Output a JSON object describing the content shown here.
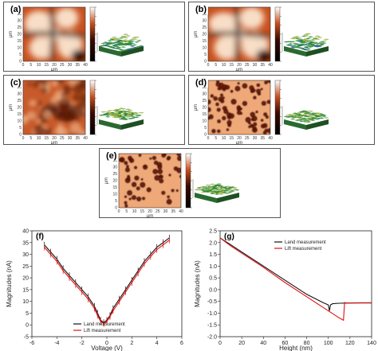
{
  "figure": {
    "panels": [
      {
        "id": "a",
        "label": "(a)",
        "variant": "big_grains"
      },
      {
        "id": "b",
        "label": "(b)",
        "variant": "big_grains"
      },
      {
        "id": "c",
        "label": "(c)",
        "variant": "mottled"
      },
      {
        "id": "d",
        "label": "(d)",
        "variant": "dots_dense"
      },
      {
        "id": "e",
        "label": "(e)",
        "variant": "dots_sparse"
      }
    ],
    "afm_axis": {
      "ticks": [
        "0",
        "5",
        "10",
        "15",
        "20",
        "25",
        "30",
        "35",
        "40"
      ],
      "unit": "μm"
    },
    "colors": {
      "afm_dark": "#3a0a00",
      "afm_mid": "#c8501e",
      "afm_light": "#fbe6d0",
      "surface_green": "#3aa84a",
      "surface_yellow": "#d8e040",
      "surface_blue": "#2a6ad8"
    }
  },
  "chart_data": [
    {
      "id": "f",
      "label": "(f)",
      "type": "line",
      "xlabel": "Voltage (V)",
      "ylabel": "Magnitudes (nA)",
      "xlim": [
        -6,
        6
      ],
      "ylim": [
        -5,
        40
      ],
      "xticks": [
        -6,
        -4,
        -2,
        0,
        2,
        4,
        6
      ],
      "yticks": [
        -5,
        0,
        5,
        10,
        15,
        20,
        25,
        30,
        35,
        40
      ],
      "legend_position": "bottom-right",
      "series": [
        {
          "name": "Land measurement",
          "color": "#111111",
          "x": [
            -5,
            -4.5,
            -4,
            -3.5,
            -3,
            -2.5,
            -2,
            -1.5,
            -1,
            -0.75,
            -0.5,
            -0.25,
            0,
            0.25,
            0.5,
            1,
            1.5,
            2,
            2.5,
            3,
            3.5,
            4,
            4.5,
            5
          ],
          "y": [
            34,
            31,
            28,
            24,
            21,
            18,
            15,
            12,
            8,
            5,
            2,
            1,
            2,
            4,
            7,
            11,
            15,
            19,
            23,
            27,
            30,
            33,
            35,
            37
          ]
        },
        {
          "name": "Lift measurement",
          "color": "#e01010",
          "x": [
            -5,
            -4.5,
            -4,
            -3.5,
            -3,
            -2.5,
            -2,
            -1.5,
            -1,
            -0.75,
            -0.5,
            -0.25,
            0,
            0.25,
            0.5,
            1,
            1.5,
            2,
            2.5,
            3,
            3.5,
            4,
            4.5,
            5
          ],
          "y": [
            33,
            30,
            27,
            23,
            20,
            17,
            14,
            11,
            7,
            4,
            1.5,
            0.5,
            1.5,
            3.5,
            6,
            10,
            14,
            18,
            22,
            26,
            29,
            32,
            34,
            36
          ]
        }
      ]
    },
    {
      "id": "g",
      "label": "(g)",
      "type": "line",
      "xlabel": "Height (nm)",
      "ylabel": "Magnitudes (nA)",
      "xlim": [
        0,
        140
      ],
      "ylim": [
        -2.0,
        2.5
      ],
      "xticks": [
        0,
        20,
        40,
        60,
        80,
        100,
        120,
        140
      ],
      "yticks": [
        -2.0,
        -1.5,
        -1.0,
        -0.5,
        0.0,
        0.5,
        1.0,
        1.5,
        2.0,
        2.5
      ],
      "legend_position": "top-right",
      "series": [
        {
          "name": "Land measurement",
          "color": "#111111",
          "x": [
            0,
            10,
            20,
            40,
            60,
            80,
            95,
            100,
            101,
            102,
            104,
            110,
            120,
            130,
            140
          ],
          "y": [
            2.2,
            1.9,
            1.6,
            1.0,
            0.4,
            -0.2,
            -0.55,
            -0.65,
            -0.9,
            -0.65,
            -0.6,
            -0.58,
            -0.57,
            -0.56,
            -0.56
          ]
        },
        {
          "name": "Lift measurement",
          "color": "#e01010",
          "x": [
            0,
            10,
            20,
            40,
            60,
            80,
            95,
            105,
            110,
            114,
            115,
            116,
            118,
            125,
            135,
            140
          ],
          "y": [
            2.2,
            1.85,
            1.55,
            0.95,
            0.3,
            -0.3,
            -0.75,
            -1.05,
            -1.2,
            -1.3,
            -0.55,
            -0.56,
            -0.57,
            -0.57,
            -0.57,
            -0.57
          ]
        }
      ]
    }
  ]
}
